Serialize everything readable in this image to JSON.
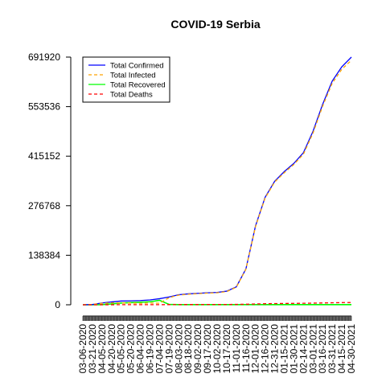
{
  "chart_data": {
    "type": "line",
    "title": "COVID-19 Serbia",
    "xlabel": "",
    "ylabel": "",
    "y_ticks": [
      0,
      138384,
      276768,
      415152,
      553536,
      691920
    ],
    "ylim": [
      0,
      691920
    ],
    "x_tick_labels": [
      "03-06-2020",
      "03-21-2020",
      "04-05-2020",
      "04-20-2020",
      "05-05-2020",
      "05-20-2020",
      "06-04-2020",
      "06-19-2020",
      "07-04-2020",
      "07-19-2020",
      "08-03-2020",
      "08-18-2020",
      "09-02-2020",
      "09-17-2020",
      "10-02-2020",
      "10-17-2020",
      "11-01-2020",
      "11-16-2020",
      "12-01-2020",
      "12-16-2020",
      "12-31-2020",
      "01-15-2021",
      "01-30-2021",
      "02-14-2021",
      "03-01-2021",
      "03-16-2021",
      "03-31-2021",
      "04-15-2021",
      "04-30-2021"
    ],
    "legend_placement": "top-left",
    "grid": false,
    "series": [
      {
        "name": "Total Confirmed",
        "color": "#0000ff",
        "dash": "solid",
        "values": [
          0,
          700,
          5000,
          8000,
          10500,
          11000,
          11800,
          13500,
          17000,
          22000,
          28000,
          30500,
          32000,
          33500,
          34500,
          38000,
          50000,
          100000,
          220000,
          300000,
          345000,
          372000,
          395000,
          425000,
          485000,
          560000,
          625000,
          665000,
          691920
        ]
      },
      {
        "name": "Total Infected",
        "color": "#ffa500",
        "dash": "dashed",
        "values": [
          0,
          650,
          4200,
          5300,
          5200,
          4600,
          4300,
          4800,
          4200,
          20000,
          27000,
          29500,
          31000,
          32500,
          33500,
          37000,
          49000,
          99000,
          218000,
          298000,
          343000,
          369000,
          392000,
          421000,
          480000,
          555000,
          619000,
          658000,
          683000
        ]
      },
      {
        "name": "Total Recovered",
        "color": "#00ff00",
        "dash": "solid",
        "values": [
          0,
          10,
          500,
          2500,
          5000,
          6000,
          7200,
          8400,
          12500,
          1000,
          500,
          500,
          500,
          500,
          500,
          500,
          500,
          500,
          500,
          500,
          500,
          500,
          500,
          500,
          500,
          500,
          500,
          500,
          500
        ]
      },
      {
        "name": "Total Deaths",
        "color": "#ff0000",
        "dash": "dashed",
        "values": [
          0,
          10,
          90,
          170,
          230,
          240,
          250,
          260,
          330,
          450,
          600,
          700,
          750,
          780,
          800,
          850,
          1000,
          1500,
          2200,
          2900,
          3300,
          3600,
          3900,
          4200,
          4600,
          5100,
          5600,
          6000,
          6300
        ]
      }
    ]
  }
}
